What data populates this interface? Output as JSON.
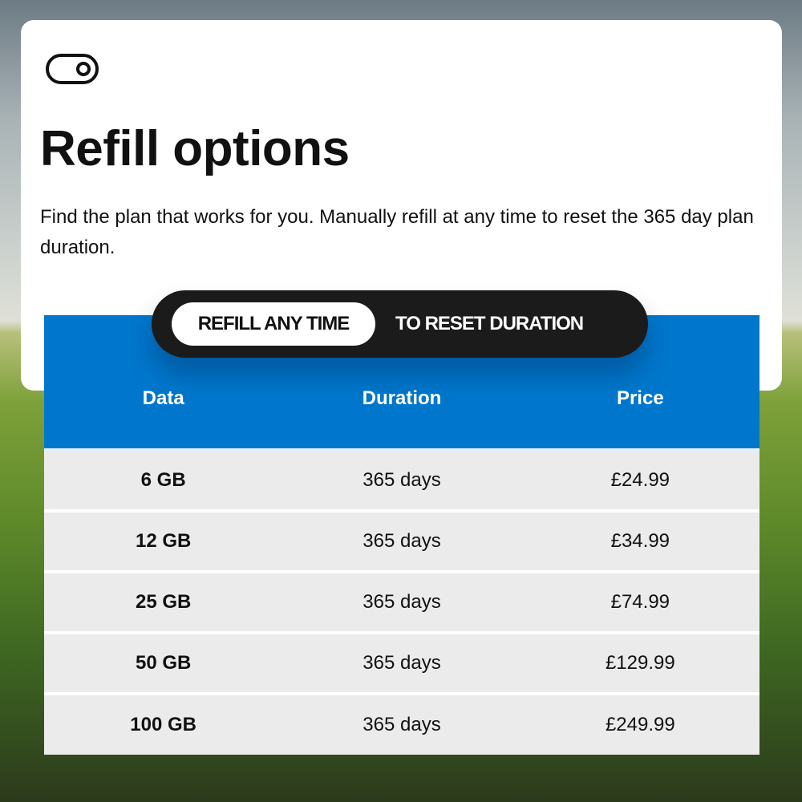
{
  "header": {
    "icon": "toggle-icon",
    "title": "Refill options",
    "description": "Find the plan that works for you. Manually refill at any time to reset the 365 day plan duration."
  },
  "pill": {
    "active_label": "REFILL ANY TIME",
    "inactive_label": "TO RESET DURATION"
  },
  "table": {
    "headers": [
      "Data",
      "Duration",
      "Price"
    ],
    "rows": [
      [
        "6 GB",
        "365 days",
        "£24.99"
      ],
      [
        "12 GB",
        "365 days",
        "£34.99"
      ],
      [
        "25 GB",
        "365 days",
        "£74.99"
      ],
      [
        "50 GB",
        "365 days",
        "£129.99"
      ],
      [
        "100 GB",
        "365 days",
        "£249.99"
      ]
    ]
  },
  "colors": {
    "accent": "#0077cc",
    "pill": "#1b1b1b",
    "row": "#ebebeb"
  }
}
